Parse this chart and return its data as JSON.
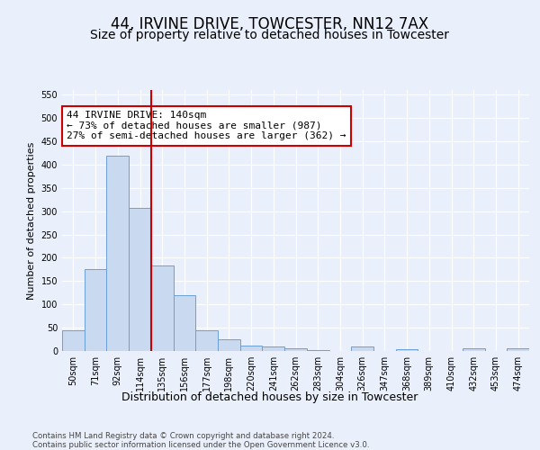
{
  "title1": "44, IRVINE DRIVE, TOWCESTER, NN12 7AX",
  "title2": "Size of property relative to detached houses in Towcester",
  "xlabel": "Distribution of detached houses by size in Towcester",
  "ylabel": "Number of detached properties",
  "bin_labels": [
    "50sqm",
    "71sqm",
    "92sqm",
    "114sqm",
    "135sqm",
    "156sqm",
    "177sqm",
    "198sqm",
    "220sqm",
    "241sqm",
    "262sqm",
    "283sqm",
    "304sqm",
    "326sqm",
    "347sqm",
    "368sqm",
    "389sqm",
    "410sqm",
    "432sqm",
    "453sqm",
    "474sqm"
  ],
  "bar_heights": [
    44,
    176,
    419,
    308,
    183,
    119,
    45,
    25,
    12,
    9,
    5,
    1,
    0,
    10,
    0,
    4,
    0,
    0,
    5,
    0,
    5
  ],
  "bar_color": "#c9d9f0",
  "bar_edge_color": "#6a9fd8",
  "property_line_x": 3.5,
  "property_line_color": "#cc0000",
  "annotation_text": "44 IRVINE DRIVE: 140sqm\n← 73% of detached houses are smaller (987)\n27% of semi-detached houses are larger (362) →",
  "annotation_box_color": "#ffffff",
  "annotation_box_edge_color": "#cc0000",
  "ylim": [
    0,
    560
  ],
  "yticks": [
    0,
    50,
    100,
    150,
    200,
    250,
    300,
    350,
    400,
    450,
    500,
    550
  ],
  "footer_text": "Contains HM Land Registry data © Crown copyright and database right 2024.\nContains public sector information licensed under the Open Government Licence v3.0.",
  "bg_color": "#eaf0fb",
  "plot_bg_color": "#eaf0fb",
  "grid_color": "#ffffff",
  "title1_fontsize": 12,
  "title2_fontsize": 10,
  "xlabel_fontsize": 9,
  "ylabel_fontsize": 8,
  "tick_fontsize": 7,
  "annotation_fontsize": 8
}
